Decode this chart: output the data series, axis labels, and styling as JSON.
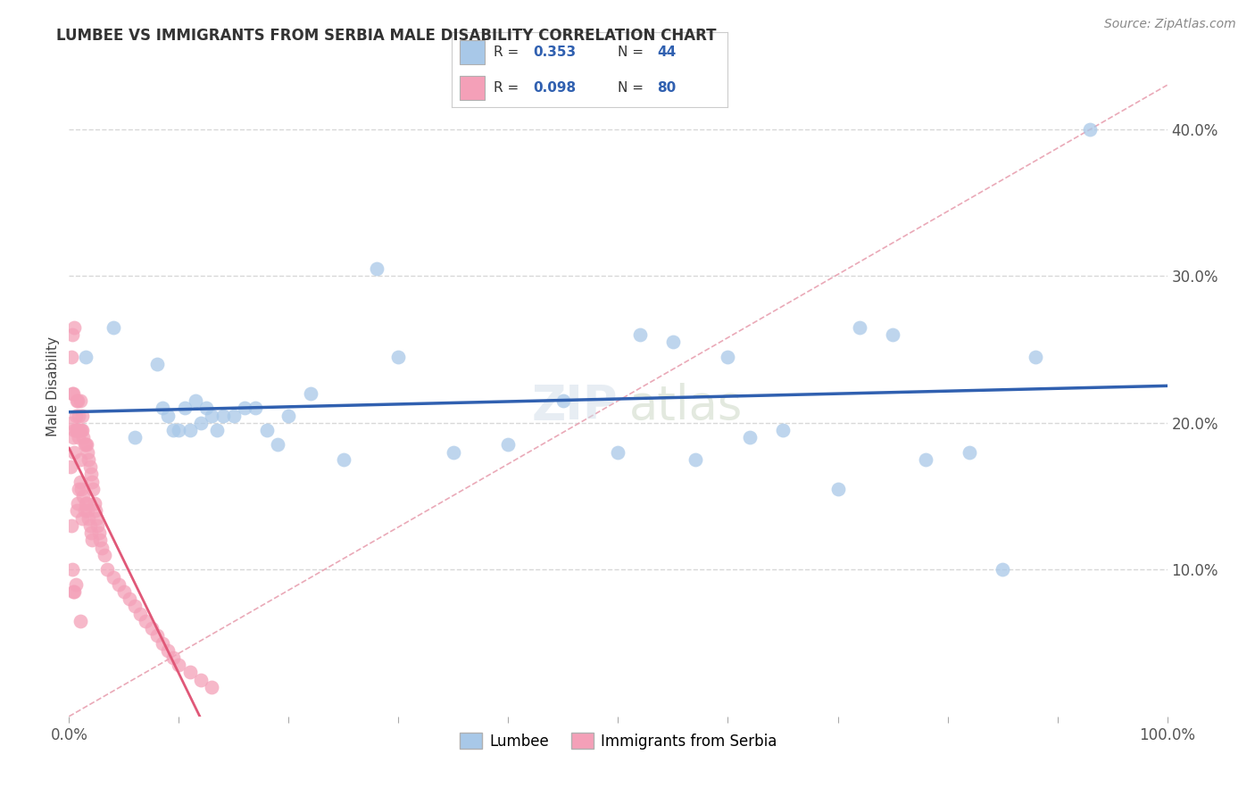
{
  "title": "LUMBEE VS IMMIGRANTS FROM SERBIA MALE DISABILITY CORRELATION CHART",
  "source_text": "Source: ZipAtlas.com",
  "ylabel": "Male Disability",
  "xlim": [
    0.0,
    1.0
  ],
  "ylim": [
    0.0,
    0.45
  ],
  "yticks": [
    0.0,
    0.1,
    0.2,
    0.3,
    0.4
  ],
  "yticklabels_right": [
    "",
    "10.0%",
    "20.0%",
    "30.0%",
    "40.0%"
  ],
  "lumbee_R": 0.353,
  "lumbee_N": 44,
  "serbia_R": 0.098,
  "serbia_N": 80,
  "lumbee_color": "#a8c8e8",
  "serbia_color": "#f4a0b8",
  "lumbee_line_color": "#3060b0",
  "serbia_line_color": "#e05878",
  "diag_line_color": "#e8a0b0",
  "grid_color": "#d8d8d8",
  "legend_lumbee_label": "Lumbee",
  "legend_serbia_label": "Immigrants from Serbia",
  "lumbee_x": [
    0.015,
    0.04,
    0.06,
    0.08,
    0.085,
    0.09,
    0.095,
    0.1,
    0.105,
    0.11,
    0.115,
    0.12,
    0.125,
    0.13,
    0.135,
    0.14,
    0.15,
    0.16,
    0.17,
    0.18,
    0.19,
    0.2,
    0.22,
    0.25,
    0.28,
    0.3,
    0.35,
    0.4,
    0.45,
    0.5,
    0.52,
    0.55,
    0.57,
    0.6,
    0.62,
    0.65,
    0.7,
    0.72,
    0.75,
    0.78,
    0.82,
    0.85,
    0.88,
    0.93
  ],
  "lumbee_y": [
    0.245,
    0.265,
    0.19,
    0.24,
    0.21,
    0.205,
    0.195,
    0.195,
    0.21,
    0.195,
    0.215,
    0.2,
    0.21,
    0.205,
    0.195,
    0.205,
    0.205,
    0.21,
    0.21,
    0.195,
    0.185,
    0.205,
    0.22,
    0.175,
    0.305,
    0.245,
    0.18,
    0.185,
    0.215,
    0.18,
    0.26,
    0.255,
    0.175,
    0.245,
    0.19,
    0.195,
    0.155,
    0.265,
    0.26,
    0.175,
    0.18,
    0.1,
    0.245,
    0.4
  ],
  "serbia_x": [
    0.001,
    0.002,
    0.002,
    0.003,
    0.003,
    0.004,
    0.004,
    0.005,
    0.005,
    0.005,
    0.006,
    0.006,
    0.007,
    0.007,
    0.008,
    0.008,
    0.009,
    0.009,
    0.01,
    0.01,
    0.01,
    0.01,
    0.011,
    0.011,
    0.012,
    0.012,
    0.013,
    0.013,
    0.014,
    0.014,
    0.015,
    0.015,
    0.016,
    0.016,
    0.017,
    0.017,
    0.018,
    0.018,
    0.019,
    0.019,
    0.02,
    0.02,
    0.021,
    0.021,
    0.022,
    0.023,
    0.024,
    0.025,
    0.026,
    0.027,
    0.028,
    0.03,
    0.032,
    0.035,
    0.04,
    0.045,
    0.05,
    0.055,
    0.06,
    0.065,
    0.07,
    0.075,
    0.08,
    0.085,
    0.09,
    0.095,
    0.1,
    0.11,
    0.12,
    0.13,
    0.002,
    0.003,
    0.004,
    0.005,
    0.006,
    0.007,
    0.008,
    0.009,
    0.01,
    0.012
  ],
  "serbia_y": [
    0.17,
    0.2,
    0.13,
    0.22,
    0.1,
    0.19,
    0.085,
    0.195,
    0.18,
    0.085,
    0.195,
    0.09,
    0.195,
    0.14,
    0.195,
    0.145,
    0.19,
    0.155,
    0.195,
    0.175,
    0.16,
    0.065,
    0.195,
    0.155,
    0.195,
    0.135,
    0.19,
    0.15,
    0.185,
    0.14,
    0.185,
    0.145,
    0.185,
    0.145,
    0.18,
    0.14,
    0.175,
    0.135,
    0.17,
    0.13,
    0.165,
    0.125,
    0.16,
    0.12,
    0.155,
    0.145,
    0.14,
    0.135,
    0.13,
    0.125,
    0.12,
    0.115,
    0.11,
    0.1,
    0.095,
    0.09,
    0.085,
    0.08,
    0.075,
    0.07,
    0.065,
    0.06,
    0.055,
    0.05,
    0.045,
    0.04,
    0.035,
    0.03,
    0.025,
    0.02,
    0.245,
    0.26,
    0.22,
    0.265,
    0.205,
    0.215,
    0.215,
    0.205,
    0.215,
    0.205
  ]
}
